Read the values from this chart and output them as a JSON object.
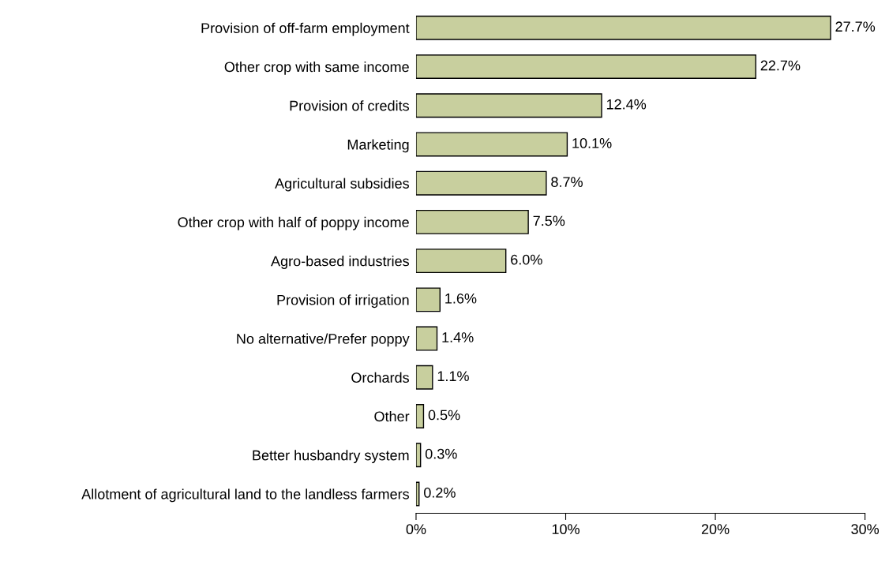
{
  "chart_data": {
    "type": "bar",
    "orientation": "horizontal",
    "categories": [
      "Provision of off-farm employment",
      "Other crop with same income",
      "Provision of credits",
      "Marketing",
      "Agricultural subsidies",
      "Other crop with half of poppy income",
      "Agro-based industries",
      "Provision of irrigation",
      "No alternative/Prefer poppy",
      "Orchards",
      "Other",
      "Better husbandry system",
      "Allotment of agricultural land to the landless farmers"
    ],
    "values": [
      27.7,
      22.7,
      12.4,
      10.1,
      8.7,
      7.5,
      6.0,
      1.6,
      1.4,
      1.1,
      0.5,
      0.3,
      0.2
    ],
    "value_labels": [
      "27.7%",
      "22.7%",
      "12.4%",
      "10.1%",
      "8.7%",
      "7.5%",
      "6.0%",
      "1.6%",
      "1.4%",
      "1.1%",
      "0.5%",
      "0.3%",
      "0.2%"
    ],
    "color": "#c8cf9e",
    "xlim": [
      0,
      30
    ],
    "xticks": [
      {
        "value": 0,
        "label": "0%"
      },
      {
        "value": 10,
        "label": "10%"
      },
      {
        "value": 20,
        "label": "20%"
      },
      {
        "value": 30,
        "label": "30%"
      }
    ],
    "grid": false
  }
}
